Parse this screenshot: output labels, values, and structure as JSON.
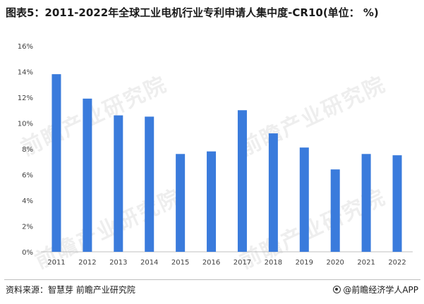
{
  "title": "图表5：2011-2022年全球工业电机行业专利申请人集中度-CR10(单位： %)",
  "source": "资料来源：智慧芽 前瞻产业研究院",
  "brand": "@前瞻经济学人APP",
  "watermark": "前瞻产业研究院",
  "colors": {
    "bar": "#3a7bdc",
    "axis": "#bfbfbf",
    "text": "#404040"
  },
  "brand_icon": "qianzhan-logo-icon",
  "chart_data": {
    "type": "bar",
    "title": "",
    "xlabel": "",
    "ylabel": "",
    "categories": [
      "2011",
      "2012",
      "2013",
      "2014",
      "2015",
      "2016",
      "2017",
      "2018",
      "2019",
      "2020",
      "2021",
      "2022"
    ],
    "values": [
      13.8,
      11.9,
      10.6,
      10.5,
      7.6,
      7.8,
      11.0,
      9.2,
      8.1,
      6.4,
      7.6,
      7.5
    ],
    "ylim": [
      0,
      16
    ],
    "yticks": [
      0,
      2,
      4,
      6,
      8,
      10,
      12,
      14,
      16
    ],
    "ytick_labels": [
      "0%",
      "2%",
      "4%",
      "6%",
      "8%",
      "10%",
      "12%",
      "14%",
      "16%"
    ],
    "grid": false,
    "legend": "none"
  }
}
